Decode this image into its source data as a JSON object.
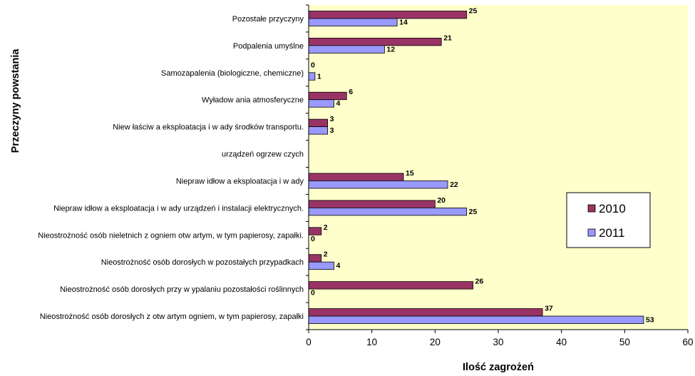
{
  "chart_data": {
    "type": "bar",
    "orientation": "horizontal",
    "categories": [
      "Pozostałe przyczyny",
      "Podpalenia umyślne",
      "Samozapalenia (biologiczne, chemiczne)",
      "Wyładow ania atmosferyczne",
      "Niew łaściw a eksploatacja i w ady środków transportu.",
      "urządzeń ogrzew czych",
      "Niepraw idłow a eksploatacja i w ady",
      "Niepraw idłow a eksploatacja i w ady urządzeń i instalacji elektrycznych.",
      "Nieostrożność osób nieletnich z ogniem otw artym, w tym papierosy, zapałki.",
      "Nieostrożność osób dorosłych w pozostałych przypadkach",
      "Nieostrożność osób dorosłych przy w ypalaniu pozostałości roślinnych",
      "Nieostrożność osób dorosłych z otw artym ogniem, w tym papierosy, zapałki"
    ],
    "series": [
      {
        "name": "2010",
        "color": "#993366",
        "values": [
          25,
          21,
          0,
          6,
          3,
          null,
          15,
          20,
          2,
          2,
          26,
          37
        ]
      },
      {
        "name": "2011",
        "color": "#9999ff",
        "values": [
          14,
          12,
          1,
          4,
          3,
          null,
          22,
          25,
          0,
          4,
          0,
          53
        ]
      }
    ],
    "xlabel": "Ilość zagrożeń",
    "ylabel": "Przeczyny powstania",
    "xlim": [
      0,
      60
    ],
    "xticks": [
      0,
      10,
      20,
      30,
      40,
      50,
      60
    ],
    "grid": false,
    "plot_background": "#ffffcc",
    "legend_position": "right"
  }
}
